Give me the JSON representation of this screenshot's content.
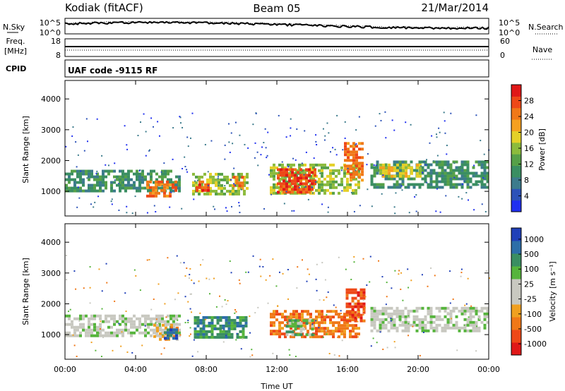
{
  "header": {
    "station": "Kodiak (fitACF)",
    "beam": "Beam 05",
    "date": "21/Mar/2014"
  },
  "sky_panel": {
    "left_label": "N.Sky",
    "right_label": "N.Search",
    "left_ticks": [
      "10^5",
      "10^0"
    ],
    "right_ticks": [
      "10^5",
      "10^0"
    ]
  },
  "freq_panel": {
    "left_label_1": "Freq.",
    "left_label_2": "[MHz]",
    "right_label": "Nave",
    "left_ticks": [
      "18",
      "8"
    ],
    "right_ticks": [
      "60",
      "0"
    ]
  },
  "cpid_panel": {
    "left_label": "CPID",
    "text": "UAF code -9115 RF"
  },
  "chart_data": [
    {
      "type": "heatmap",
      "name": "power",
      "ylabel": "Slant Range [km]",
      "ylim": [
        200,
        4600
      ],
      "yticks": [
        "1000",
        "2000",
        "3000",
        "4000"
      ],
      "xlim": [
        0,
        24
      ],
      "colorbar": {
        "label": "Power [dB]",
        "ticks": [
          "4",
          "8",
          "12",
          "16",
          "20",
          "24",
          "28"
        ],
        "colors": [
          "#2030f0",
          "#2c52b8",
          "#3c7b8c",
          "#3a8e62",
          "#56a048",
          "#8cbb3c",
          "#e4d028",
          "#f5a020",
          "#f07818",
          "#ee4818",
          "#e01818"
        ]
      },
      "regions": [
        {
          "t0": 0.0,
          "t1": 6.5,
          "r0": 1000,
          "r1": 1700,
          "level": 3
        },
        {
          "t0": 4.6,
          "t1": 6.2,
          "r0": 850,
          "r1": 1350,
          "level": 8
        },
        {
          "t0": 7.2,
          "t1": 10.3,
          "r0": 950,
          "r1": 1600,
          "level": 5
        },
        {
          "t0": 7.4,
          "t1": 8.2,
          "r0": 1000,
          "r1": 1350,
          "level": 9
        },
        {
          "t0": 9.5,
          "t1": 10.0,
          "r0": 1100,
          "r1": 1500,
          "level": 8
        },
        {
          "t0": 11.6,
          "t1": 16.7,
          "r0": 900,
          "r1": 1900,
          "level": 5
        },
        {
          "t0": 12.0,
          "t1": 14.2,
          "r0": 1000,
          "r1": 1750,
          "level": 9
        },
        {
          "t0": 15.8,
          "t1": 16.8,
          "r0": 1400,
          "r1": 2600,
          "level": 8
        },
        {
          "t0": 17.3,
          "t1": 24.0,
          "r0": 1150,
          "r1": 2000,
          "level": 3
        },
        {
          "t0": 17.8,
          "t1": 20.2,
          "r0": 1500,
          "r1": 1900,
          "level": 6
        }
      ]
    },
    {
      "type": "heatmap",
      "name": "velocity",
      "ylabel": "Slant Range [km]",
      "ylim": [
        200,
        4600
      ],
      "yticks": [
        "1000",
        "2000",
        "3000",
        "4000"
      ],
      "xlabel": "Time UT",
      "xlim": [
        0,
        24
      ],
      "xticks": [
        "00:00",
        "04:00",
        "08:00",
        "12:00",
        "16:00",
        "20:00",
        "00:00"
      ],
      "colorbar": {
        "label": "Velocity [m s⁻¹]",
        "ticks": [
          "1000",
          "500",
          "100",
          "25",
          "-25",
          "-100",
          "-500",
          "-1000"
        ],
        "colors": [
          "#2040b8",
          "#2d6ea8",
          "#3a8e62",
          "#56b43c",
          "#c8c8c0",
          "#c8c8c0",
          "#f0a020",
          "#f07818",
          "#ee4818",
          "#e01818"
        ]
      },
      "regions": [
        {
          "t0": 0.0,
          "t1": 6.5,
          "r0": 1000,
          "r1": 1650,
          "level": 4
        },
        {
          "t0": 5.0,
          "t1": 6.3,
          "r0": 850,
          "r1": 1350,
          "level": 6
        },
        {
          "t0": 5.6,
          "t1": 6.3,
          "r0": 900,
          "r1": 1200,
          "level": 1
        },
        {
          "t0": 7.3,
          "t1": 10.2,
          "r0": 950,
          "r1": 1600,
          "level": 2
        },
        {
          "t0": 11.6,
          "t1": 16.7,
          "r0": 900,
          "r1": 1800,
          "level": 7
        },
        {
          "t0": 12.5,
          "t1": 14.0,
          "r0": 1000,
          "r1": 1500,
          "level": 3
        },
        {
          "t0": 15.9,
          "t1": 16.9,
          "r0": 1400,
          "r1": 2500,
          "level": 8
        },
        {
          "t0": 17.3,
          "t1": 24.0,
          "r0": 1150,
          "r1": 1900,
          "level": 4
        }
      ]
    }
  ]
}
